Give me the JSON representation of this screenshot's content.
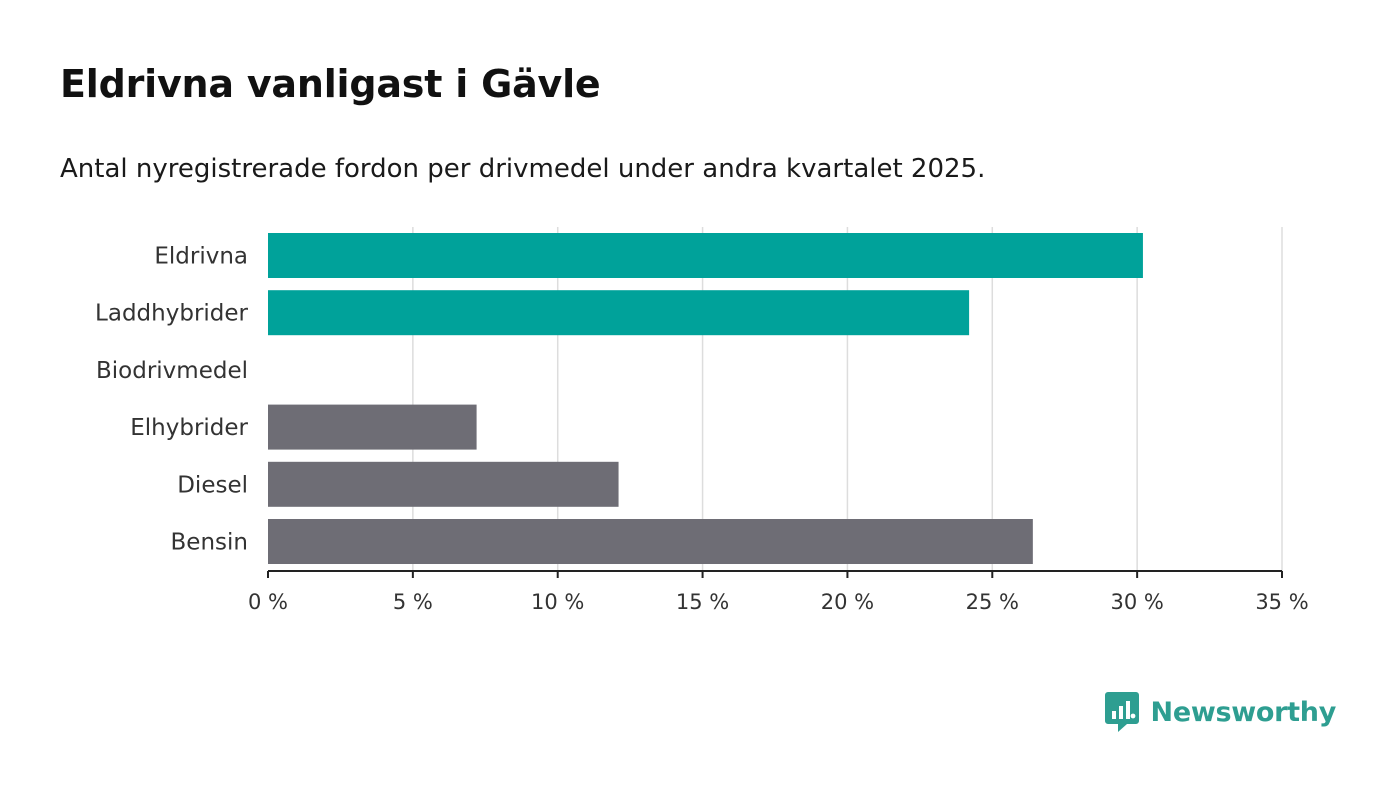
{
  "title": "Eldrivna vanligast i Gävle",
  "subtitle": "Antal nyregistrerade fordon per drivmedel under andra kvartalet 2025.",
  "colors": {
    "highlight": "#00a29a",
    "default": "#6e6d75",
    "grid": "#dddddd",
    "axis": "#222222"
  },
  "chart_data": {
    "type": "bar",
    "orientation": "horizontal",
    "categories": [
      "Eldrivna",
      "Laddhybrider",
      "Biodrivmedel",
      "Elhybrider",
      "Diesel",
      "Bensin"
    ],
    "values": [
      30.2,
      24.2,
      0,
      7.2,
      12.1,
      26.4
    ],
    "highlighted": [
      true,
      true,
      false,
      false,
      false,
      false
    ],
    "xlim": [
      0,
      35
    ],
    "ticks": [
      0,
      5,
      10,
      15,
      20,
      25,
      30,
      35
    ],
    "tick_labels": [
      "0 %",
      "5 %",
      "10 %",
      "15 %",
      "20 %",
      "25 %",
      "30 %",
      "35 %"
    ],
    "grid": true
  },
  "brand": {
    "name": "Newsworthy",
    "icon": "newsworthy-logo-icon"
  }
}
